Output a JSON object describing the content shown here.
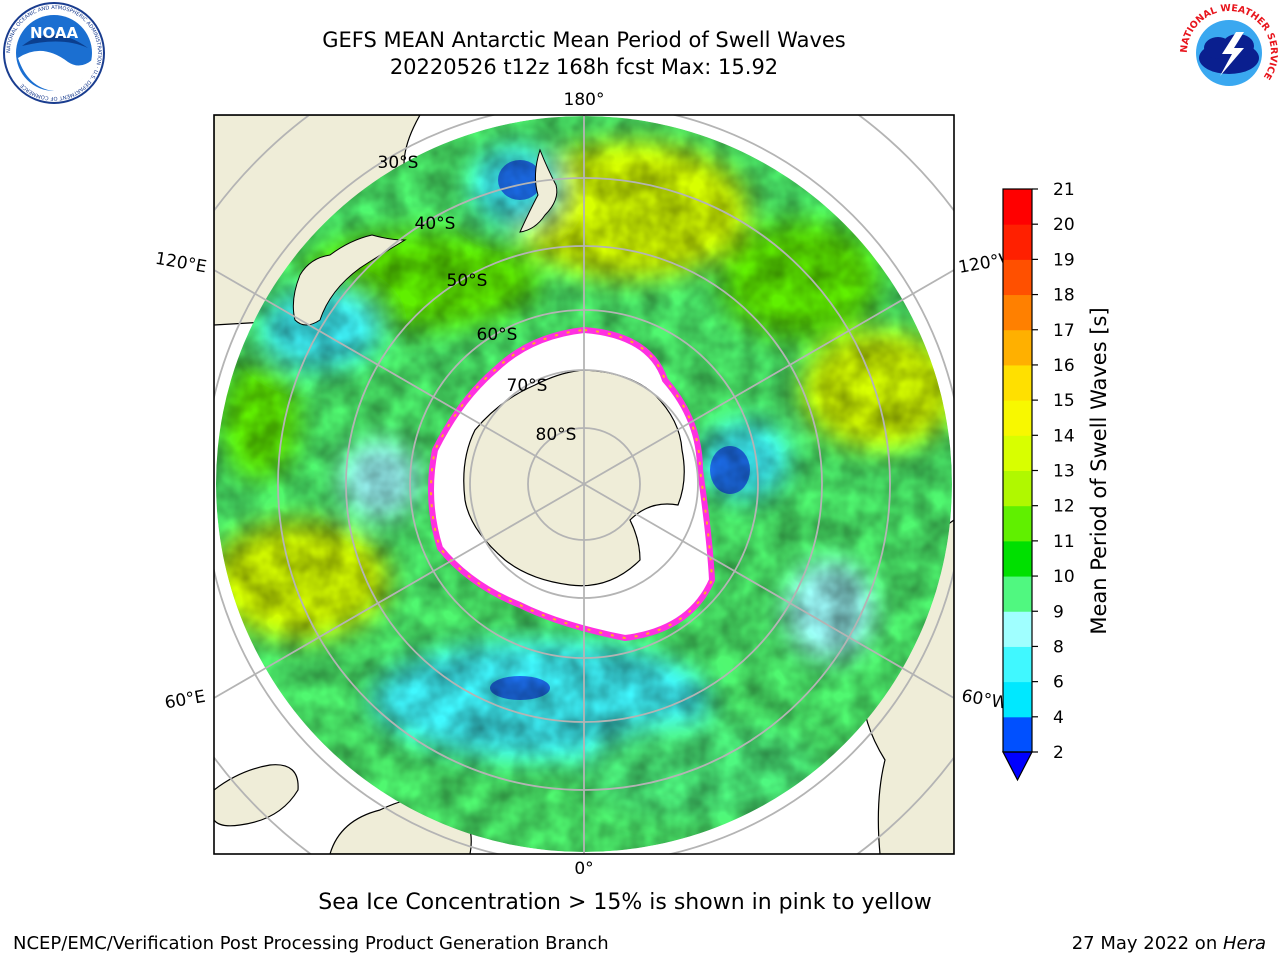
{
  "header": {
    "title_line1": "GEFS MEAN Antarctic Mean Period of Swell Waves",
    "title_line2": "20220526 t12z 168h fcst   Max: 15.92"
  },
  "logos": {
    "left_icon": "noaa-logo-icon",
    "left_text": "NOAA",
    "left_ring_text": "NATIONAL OCEANIC AND ATMOSPHERIC ADMINISTRATION · U.S. DEPARTMENT OF COMMERCE",
    "right_icon": "nws-logo-icon",
    "right_ring_text": "NATIONAL WEATHER SERVICE"
  },
  "chart_data": {
    "type": "heatmap",
    "projection": "south-polar-stereographic",
    "field": "Mean Period of Swell Waves",
    "max_value": 15.92,
    "longitude_labels": {
      "top": "180°",
      "upper_left": "120°E",
      "upper_right": "120°W",
      "lower_left": "60°E",
      "lower_right": "60°W",
      "bottom": "0°"
    },
    "latitude_labels": [
      "30°S",
      "40°S",
      "50°S",
      "60°S",
      "70°S",
      "80°S"
    ],
    "colorbar": {
      "label": "Mean Period of Swell Waves [s]",
      "ticks": [
        "2",
        "4",
        "6",
        "8",
        "9",
        "10",
        "11",
        "12",
        "13",
        "14",
        "15",
        "16",
        "17",
        "18",
        "19",
        "20",
        "21"
      ],
      "colors": [
        "#0050ff",
        "#00e8ff",
        "#40f8ff",
        "#a0ffff",
        "#50f880",
        "#00e000",
        "#60f000",
        "#b0f800",
        "#d8ff00",
        "#f8f800",
        "#ffe000",
        "#ffb000",
        "#ff8000",
        "#ff5000",
        "#ff2000",
        "#ff0000"
      ],
      "under_color": "#0000ff",
      "extend": "min"
    },
    "grid": true
  },
  "annotation": "Sea Ice Concentration > 15% is shown in pink to yellow",
  "footer": {
    "left": "NCEP/EMC/Verification Post Processing Product Generation Branch",
    "right_prefix": "27 May 2022 on ",
    "right_machine": "Hera"
  }
}
